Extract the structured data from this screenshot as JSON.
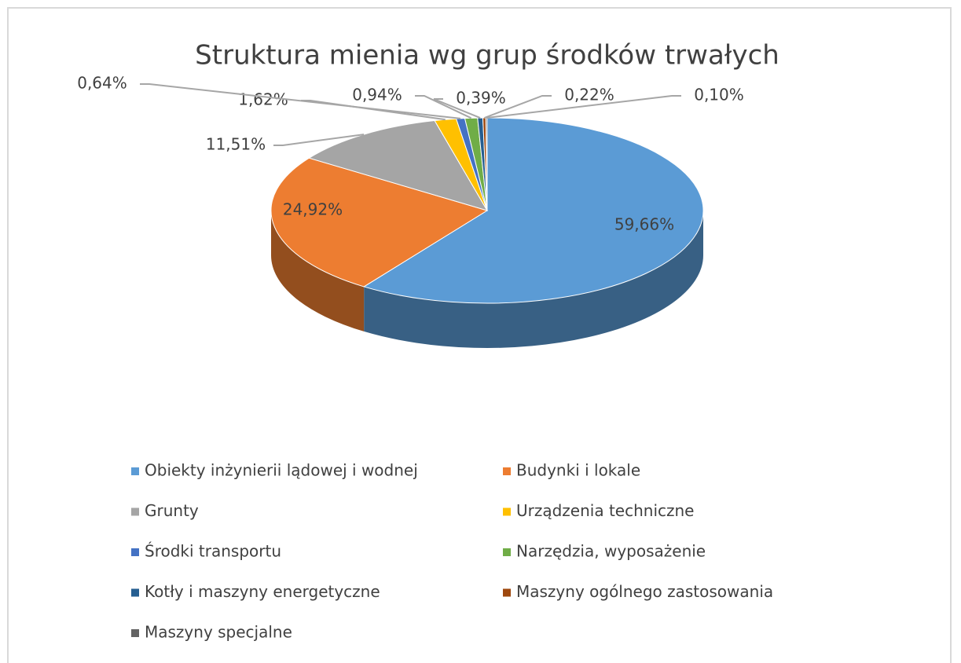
{
  "chart_data": {
    "type": "pie",
    "title": "Struktura mienia wg grup środków trwałych",
    "categories": [
      "Obiekty inżynierii lądowej i wodnej",
      "Budynki i lokale",
      "Grunty",
      "Urządzenia techniczne",
      "Środki transportu",
      "Narzędzia, wyposażenie",
      "Kotły i maszyny energetyczne",
      "Maszyny ogólnego zastosowania",
      "Maszyny specjalne"
    ],
    "values": [
      59.66,
      24.92,
      11.51,
      1.62,
      0.64,
      0.94,
      0.39,
      0.22,
      0.1
    ],
    "value_labels": [
      "59,66%",
      "24,92%",
      "11,51%",
      "1,62%",
      "0,64%",
      "0,94%",
      "0,39%",
      "0,22%",
      "0,10%"
    ],
    "colors": [
      "#5b9bd5",
      "#ed7d31",
      "#a5a5a5",
      "#ffc000",
      "#4472c4",
      "#70ad47",
      "#255e91",
      "#9e480e",
      "#636363"
    ],
    "legend": "bottom"
  }
}
